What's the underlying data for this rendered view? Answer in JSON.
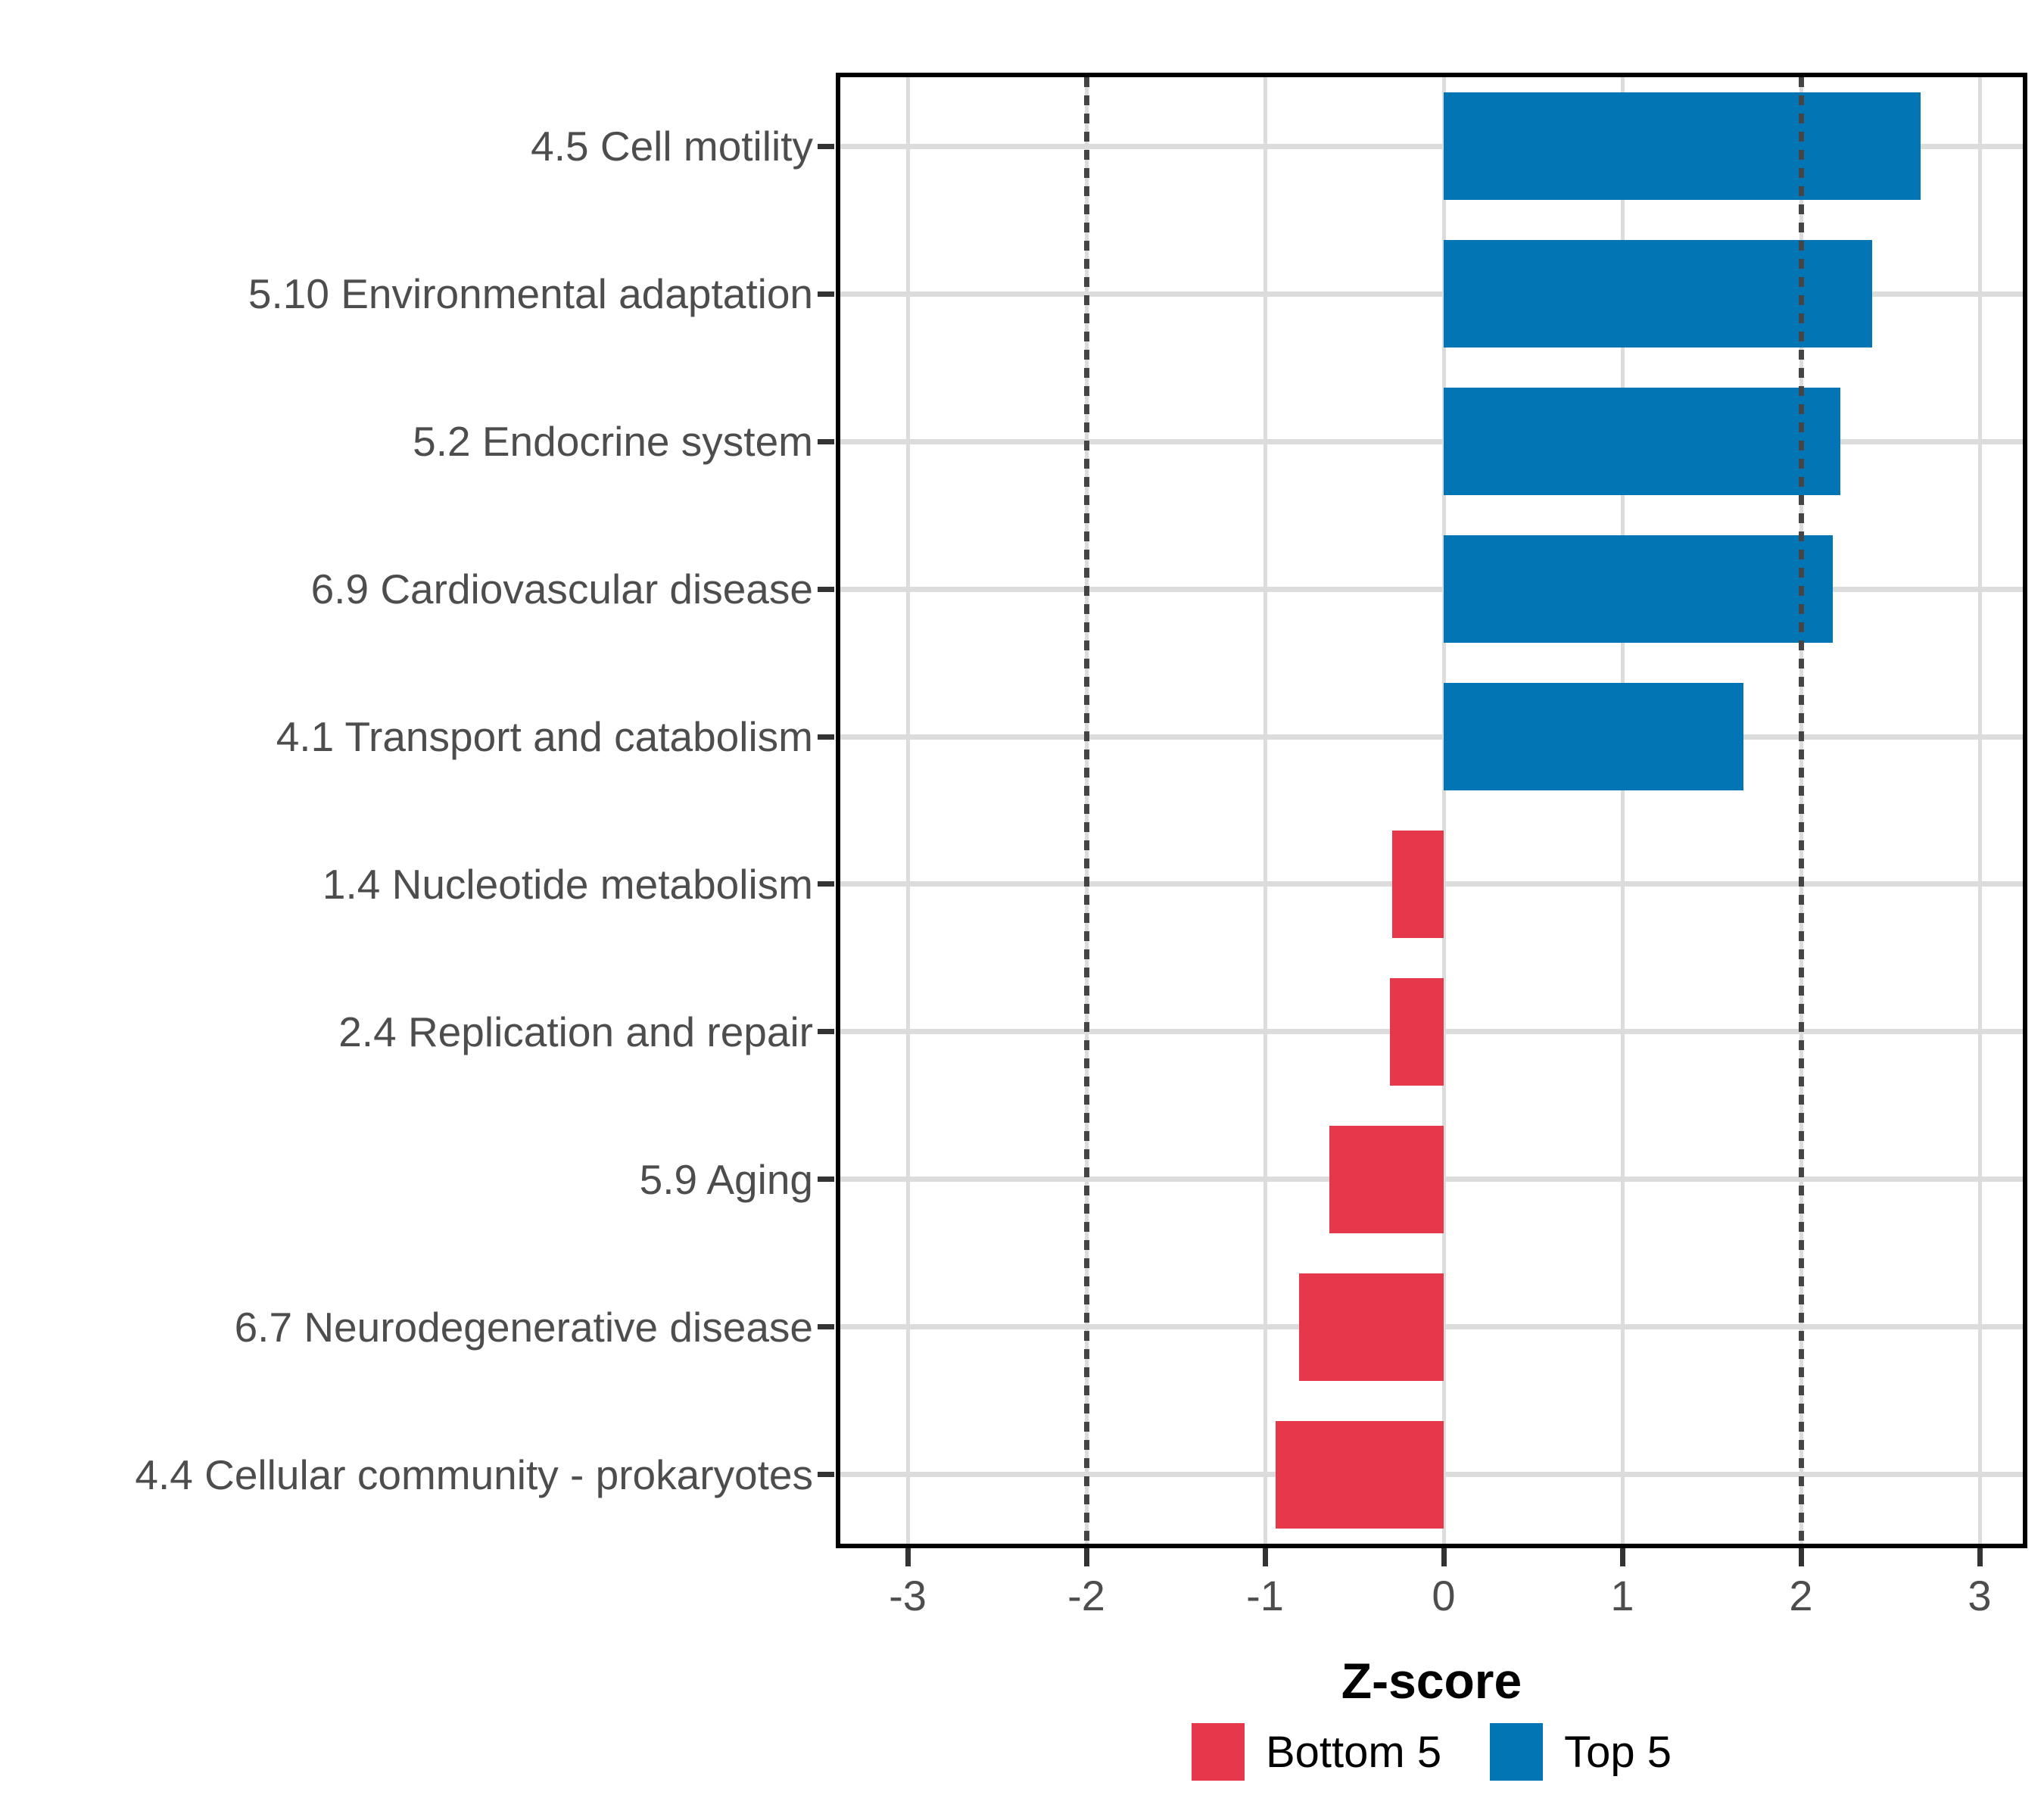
{
  "chart_data": {
    "type": "bar",
    "orientation": "horizontal",
    "xlabel": "Z-score",
    "categories": [
      "4.5 Cell motility",
      "5.10 Environmental adaptation",
      "5.2 Endocrine system",
      "6.9 Cardiovascular disease",
      "4.1 Transport and catabolism",
      "1.4 Nucleotide metabolism",
      "2.4 Replication and repair",
      "5.9 Aging",
      "6.7 Neurodegenerative disease",
      "4.4 Cellular community - prokaryotes"
    ],
    "values": [
      2.67,
      2.4,
      2.22,
      2.18,
      1.68,
      -0.29,
      -0.3,
      -0.64,
      -0.81,
      -0.94
    ],
    "groups": [
      "Top 5",
      "Top 5",
      "Top 5",
      "Top 5",
      "Top 5",
      "Bottom 5",
      "Bottom 5",
      "Bottom 5",
      "Bottom 5",
      "Bottom 5"
    ],
    "group_colors": {
      "Bottom 5": "#E5384A",
      "Top 5": "#0276B5"
    },
    "x_ticks": [
      -3,
      -2,
      -1,
      0,
      1,
      2,
      3
    ],
    "xlim": [
      -3.4,
      3.27
    ],
    "reference_lines": [
      -2,
      2
    ],
    "grid": "on",
    "legend_position": "bottom",
    "legend": [
      {
        "label": "Bottom 5",
        "color": "#E5384A"
      },
      {
        "label": "Top 5",
        "color": "#0276B5"
      }
    ],
    "colors": {
      "gridline": "#dcdcdc",
      "axis_text": "#4d4d4d",
      "panel_border": "#000000",
      "reference_line": "#454545"
    }
  }
}
